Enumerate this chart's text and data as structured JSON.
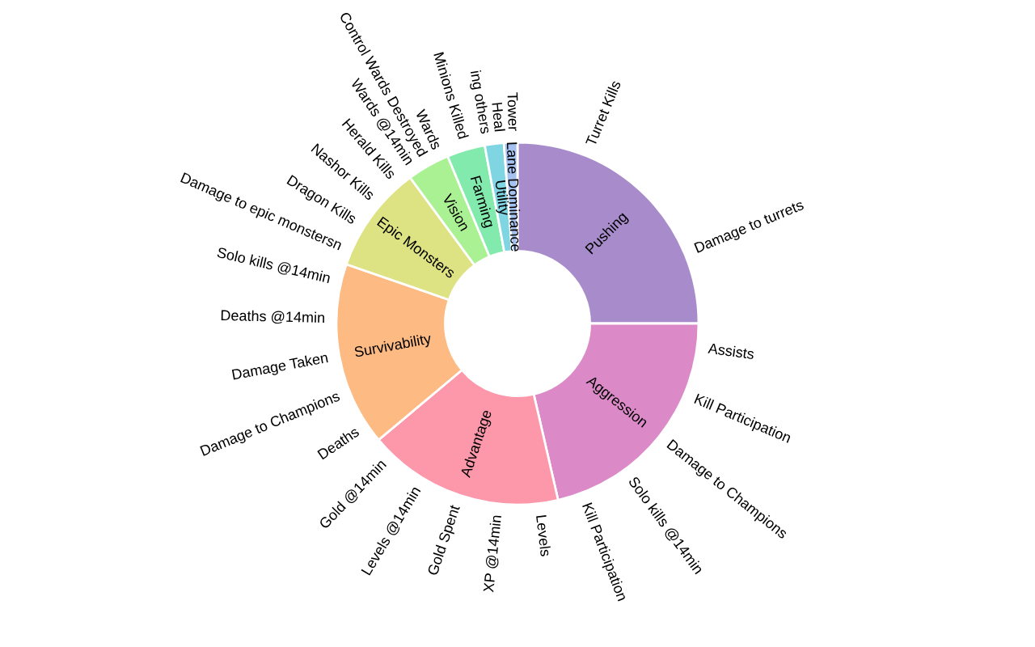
{
  "chart_data": {
    "type": "donut",
    "categories": [
      "Pushing",
      "Aggression",
      "Advantage",
      "Survivability",
      "Epic Monsters",
      "Vision",
      "Farming",
      "Utility",
      "Lane Dominance"
    ],
    "values": [
      25.0,
      21.4,
      17.5,
      16.4,
      9.6,
      3.8,
      3.4,
      1.7,
      1.2
    ],
    "colors": [
      "#a78bca",
      "#dc89c8",
      "#fd97aa",
      "#fdba83",
      "#dde283",
      "#a9f192",
      "#83eaad",
      "#80d5e3",
      "#a4c1ef"
    ],
    "annotations": [
      {
        "text": "Turret Kills",
        "x": "Pushing"
      },
      {
        "text": "Damage to turrets",
        "x": "Pushing"
      },
      {
        "text": "Assists",
        "x": "Aggression"
      },
      {
        "text": "Kill Participation",
        "x": "Aggression"
      },
      {
        "text": "Damage to Champions",
        "x": "Aggression"
      },
      {
        "text": "Solo kills @14min",
        "x": "Aggression"
      },
      {
        "text": "Kill Participation",
        "x": "Aggression"
      },
      {
        "text": "Levels",
        "x": "Advantage"
      },
      {
        "text": "XP @14min",
        "x": "Advantage"
      },
      {
        "text": "Gold Spent",
        "x": "Advantage"
      },
      {
        "text": "Levels @14min",
        "x": "Advantage"
      },
      {
        "text": "Gold @14min",
        "x": "Advantage"
      },
      {
        "text": "Deaths",
        "x": "Survivability"
      },
      {
        "text": "Damage to Champions",
        "x": "Survivability"
      },
      {
        "text": "Damage Taken",
        "x": "Survivability"
      },
      {
        "text": "Deaths @14min",
        "x": "Survivability"
      },
      {
        "text": "Solo kills @14min",
        "x": "Survivability"
      },
      {
        "text": "Damage to epic monstersn",
        "x": "Epic Monsters"
      },
      {
        "text": "Dragon Kills",
        "x": "Epic Monsters"
      },
      {
        "text": "Nashor Kills",
        "x": "Epic Monsters"
      },
      {
        "text": "Herald Kills",
        "x": "Epic Monsters"
      },
      {
        "text": "Wards @14min",
        "x": "Vision"
      },
      {
        "text": "Control Wards Destroyed",
        "x": "Vision"
      },
      {
        "text": "Wards",
        "x": "Vision"
      },
      {
        "text": "Minions Killed",
        "x": "Farming"
      },
      {
        "text": "ing others",
        "x": "Utility"
      },
      {
        "text": "Heal",
        "x": "Utility"
      },
      {
        "text": "Tower",
        "x": "Lane Dominance"
      }
    ]
  }
}
